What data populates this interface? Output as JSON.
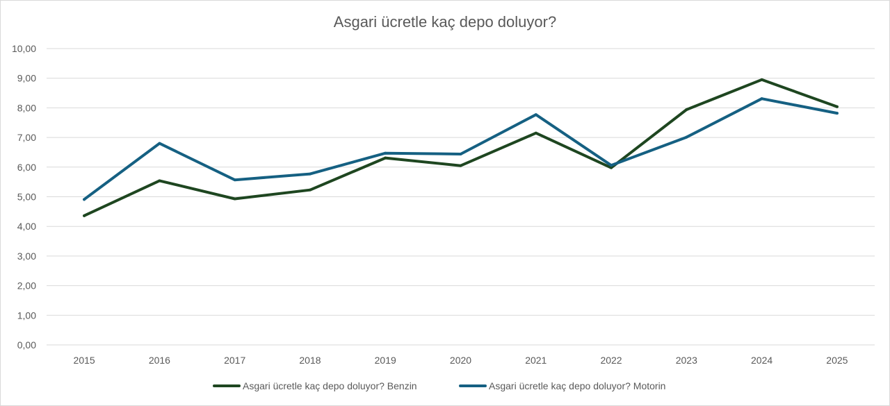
{
  "chart_data": {
    "type": "line",
    "title": "Asgari ücretle kaç depo doluyor?",
    "xlabel": "",
    "ylabel": "",
    "categories": [
      "2015",
      "2016",
      "2017",
      "2018",
      "2019",
      "2020",
      "2021",
      "2022",
      "2023",
      "2024",
      "2025"
    ],
    "ylim": [
      0,
      10
    ],
    "y_ticks": [
      "0,00",
      "1,00",
      "2,00",
      "3,00",
      "4,00",
      "5,00",
      "6,00",
      "7,00",
      "8,00",
      "9,00",
      "10,00"
    ],
    "grid": true,
    "legend_position": "bottom",
    "series": [
      {
        "name": "Asgari ücretle kaç depo doluyor? Benzin",
        "color": "#1e4620",
        "values": [
          4.36,
          5.54,
          4.93,
          5.23,
          6.31,
          6.05,
          7.15,
          5.98,
          7.94,
          8.95,
          8.04
        ]
      },
      {
        "name": "Asgari ücretle kaç depo doluyor? Motorin",
        "color": "#156082",
        "values": [
          4.91,
          6.8,
          5.57,
          5.77,
          6.47,
          6.44,
          7.77,
          6.06,
          7.01,
          8.31,
          7.82
        ]
      }
    ]
  }
}
